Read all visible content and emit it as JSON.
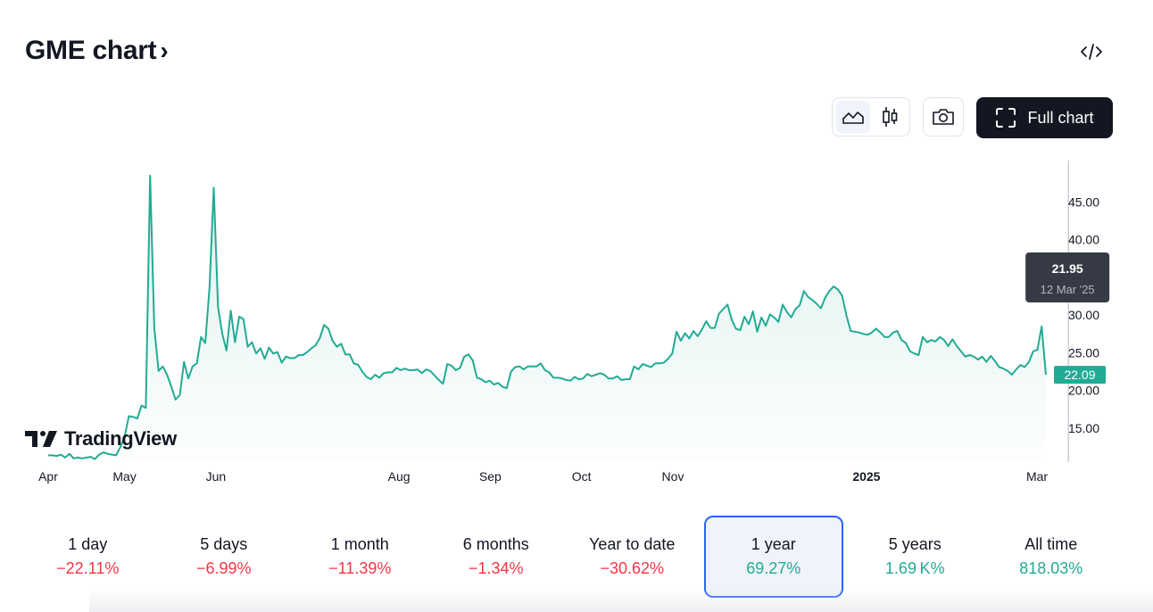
{
  "header": {
    "title": "GME chart",
    "full_chart_label": "Full chart"
  },
  "icons": {
    "embed": "code-icon",
    "area": "area-chart-icon",
    "candles": "candlestick-icon",
    "camera": "camera-icon",
    "fullscreen": "fullscreen-icon"
  },
  "colors": {
    "line": "#22ab94",
    "negative": "#f23645",
    "positive": "#22ab94",
    "selected_border": "#2962ff",
    "button_dark": "#131722"
  },
  "watermark": "TradingView",
  "tooltip": {
    "value": "21.95",
    "date": "12 Mar '25"
  },
  "last_price": "22.09",
  "chart_data": {
    "type": "area",
    "title": "",
    "xlabel": "",
    "ylabel": "",
    "ylim": [
      10.5,
      50.5
    ],
    "y_ticks": [
      "45.00",
      "40.00",
      "35.00",
      "30.00",
      "25.00",
      "20.00",
      "15.00"
    ],
    "y_tick_values": [
      45,
      40,
      35,
      30,
      25,
      20,
      15
    ],
    "x_ticks": [
      {
        "label": "Apr",
        "t": 0.0,
        "bold": false
      },
      {
        "label": "May",
        "t": 0.0766,
        "bold": false
      },
      {
        "label": "Jun",
        "t": 0.1681,
        "bold": false
      },
      {
        "label": "Aug",
        "t": 0.3516,
        "bold": false
      },
      {
        "label": "Sep",
        "t": 0.4431,
        "bold": false
      },
      {
        "label": "Oct",
        "t": 0.5346,
        "bold": false
      },
      {
        "label": "Nov",
        "t": 0.6261,
        "bold": false
      },
      {
        "label": "2025",
        "t": 0.8201,
        "bold": true
      },
      {
        "label": "Mar",
        "t": 0.9911,
        "bold": false
      }
    ],
    "crosshair_t": 1.0225,
    "series": [
      {
        "values": [
          11.4,
          11.4,
          11.3,
          11.5,
          11.1,
          11.6,
          11.0,
          11.1,
          11.0,
          11.1,
          11.2,
          10.9,
          11.5,
          11.8,
          11.6,
          11.5,
          11.4,
          12.5,
          13.9,
          16.6,
          16.5,
          16.3,
          18.0,
          17.7,
          48.5,
          28.3,
          22.6,
          23.2,
          22.1,
          20.5,
          18.8,
          19.4,
          23.8,
          21.6,
          23.2,
          23.6,
          27.1,
          26.3,
          33.7,
          46.9,
          31.1,
          27.5,
          25.3,
          30.6,
          26.4,
          29.8,
          29.5,
          25.8,
          26.4,
          24.9,
          25.6,
          24.2,
          25.7,
          24.9,
          25.1,
          23.7,
          24.5,
          24.3,
          24.3,
          24.7,
          24.7,
          25.1,
          25.6,
          26.0,
          27.0,
          28.7,
          28.2,
          26.6,
          25.8,
          26.2,
          24.8,
          24.8,
          23.6,
          23.4,
          22.5,
          21.8,
          21.5,
          22.1,
          21.7,
          22.3,
          22.4,
          22.4,
          23.0,
          22.7,
          22.9,
          22.7,
          22.7,
          22.8,
          22.3,
          22.8,
          22.6,
          22.0,
          21.4,
          20.9,
          23.5,
          23.3,
          22.7,
          23.0,
          24.5,
          24.8,
          24.0,
          21.7,
          21.5,
          21.1,
          21.3,
          20.8,
          21.0,
          20.5,
          20.3,
          22.5,
          23.1,
          23.2,
          22.8,
          23.2,
          23.2,
          23.2,
          23.6,
          22.7,
          22.4,
          21.7,
          21.7,
          21.6,
          21.4,
          21.3,
          21.8,
          21.5,
          21.6,
          22.2,
          21.9,
          22.1,
          22.3,
          22.1,
          21.6,
          21.6,
          21.9,
          21.4,
          21.5,
          21.5,
          23.2,
          22.8,
          23.5,
          23.3,
          23.1,
          23.6,
          23.6,
          23.7,
          24.2,
          24.9,
          27.8,
          26.6,
          27.6,
          26.9,
          27.9,
          27.2,
          28.1,
          29.2,
          28.3,
          28.3,
          30.2,
          30.8,
          31.4,
          29.4,
          28.2,
          28.0,
          29.8,
          28.8,
          30.5,
          27.8,
          29.7,
          28.6,
          30.1,
          29.7,
          29.1,
          31.4,
          30.4,
          29.7,
          30.8,
          31.3,
          33.2,
          32.4,
          32.0,
          31.5,
          30.9,
          32.3,
          33.2,
          33.8,
          33.4,
          32.6,
          30.0,
          27.9,
          27.8,
          27.7,
          27.5,
          27.4,
          27.7,
          28.2,
          27.7,
          27.1,
          27.1,
          27.7,
          27.9,
          26.7,
          26.3,
          25.2,
          24.9,
          24.7,
          27.1,
          26.4,
          26.7,
          26.5,
          27.1,
          26.7,
          25.9,
          26.8,
          25.9,
          25.2,
          24.5,
          24.7,
          24.5,
          24.1,
          24.5,
          23.8,
          24.6,
          23.9,
          23.1,
          22.9,
          22.6,
          22.1,
          22.8,
          23.4,
          23.1,
          23.8,
          25.2,
          25.4,
          28.5,
          22.09
        ]
      }
    ]
  },
  "periods": [
    {
      "label": "1 day",
      "value": "−22.11%",
      "dir": "neg"
    },
    {
      "label": "5 days",
      "value": "−6.99%",
      "dir": "neg"
    },
    {
      "label": "1 month",
      "value": "−11.39%",
      "dir": "neg"
    },
    {
      "label": "6 months",
      "value": "−1.34%",
      "dir": "neg"
    },
    {
      "label": "Year to date",
      "value": "−30.62%",
      "dir": "neg"
    },
    {
      "label": "1 year",
      "value": "69.27%",
      "dir": "pos",
      "selected": true
    },
    {
      "label": "5 years",
      "value": "1.69 K%",
      "dir": "pos"
    },
    {
      "label": "All time",
      "value": "818.03%",
      "dir": "pos"
    }
  ]
}
